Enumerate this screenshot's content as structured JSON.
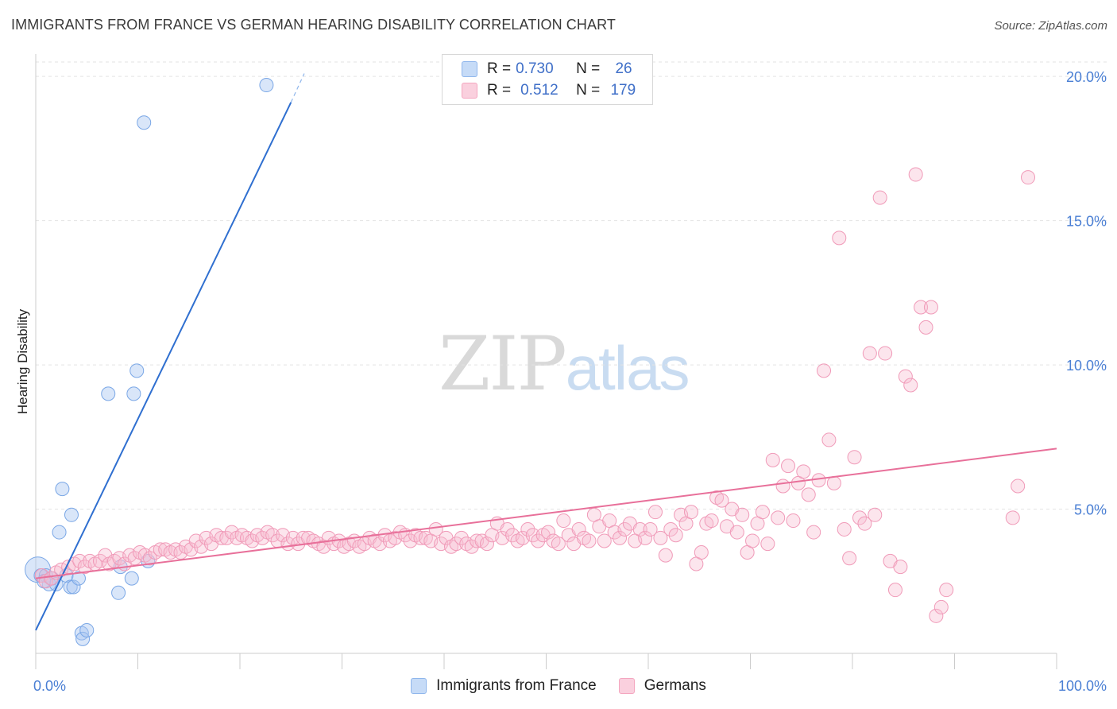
{
  "title": "IMMIGRANTS FROM FRANCE VS GERMAN HEARING DISABILITY CORRELATION CHART",
  "source": "Source: ZipAtlas.com",
  "watermark": {
    "zip": "ZIP",
    "atlas": "atlas"
  },
  "colors": {
    "blue": "#8fb6ec",
    "blue_line": "#2f6fd0",
    "pink": "#f4a6bf",
    "pink_line": "#e8709a",
    "tick": "#4a7fd4"
  },
  "legend": {
    "rows": [
      {
        "r_label": "R = ",
        "r_value": "0.730",
        "n_label": "N = ",
        "n_value": "26",
        "color": "#8fb6ec"
      },
      {
        "r_label": "R = ",
        "r_value": "0.512",
        "n_label": "N = ",
        "n_value": "179",
        "color": "#f4a6bf"
      }
    ]
  },
  "bottom_legend": [
    {
      "label": "Immigrants from France",
      "color": "#8fb6ec"
    },
    {
      "label": "Germans",
      "color": "#f4a6bf"
    }
  ],
  "chart_data": {
    "type": "scatter",
    "ylabel": "Hearing Disability",
    "xlabel": "",
    "xlim": [
      0,
      100
    ],
    "ylim": [
      0,
      20.5
    ],
    "x_tick_labels": [
      "0.0%",
      "100.0%"
    ],
    "y_ticks": [
      5,
      10,
      15,
      20
    ],
    "y_tick_labels": [
      "5.0%",
      "10.0%",
      "15.0%",
      "20.0%"
    ],
    "grid": true,
    "legend_position": "top-center",
    "series": [
      {
        "name": "Immigrants from France",
        "color": "#8fb6ec",
        "points": [
          [
            0.2,
            2.9
          ],
          [
            0.5,
            2.7
          ],
          [
            1.0,
            2.7
          ],
          [
            1.3,
            2.4
          ],
          [
            1.6,
            2.6
          ],
          [
            2.0,
            2.4
          ],
          [
            2.3,
            4.2
          ],
          [
            2.6,
            5.7
          ],
          [
            3.0,
            2.7
          ],
          [
            3.4,
            2.3
          ],
          [
            3.5,
            4.8
          ],
          [
            3.7,
            2.3
          ],
          [
            4.2,
            2.6
          ],
          [
            4.5,
            0.7
          ],
          [
            4.6,
            0.5
          ],
          [
            5.0,
            0.8
          ],
          [
            7.1,
            9.0
          ],
          [
            8.1,
            2.1
          ],
          [
            8.3,
            3.0
          ],
          [
            9.4,
            2.6
          ],
          [
            9.6,
            9.0
          ],
          [
            9.9,
            9.8
          ],
          [
            10.6,
            18.4
          ],
          [
            11.0,
            3.2
          ],
          [
            22.6,
            19.7
          ],
          [
            0.8,
            2.5
          ]
        ],
        "trend": {
          "x": [
            0,
            25
          ],
          "y": [
            0.8,
            19.1
          ],
          "dashed_extension": {
            "x": [
              25,
              26.3
            ],
            "y": [
              19.1,
              20.1
            ]
          }
        }
      },
      {
        "name": "Germans",
        "color": "#f4a6bf",
        "points": [
          [
            0.6,
            2.7
          ],
          [
            1.0,
            2.5
          ],
          [
            1.5,
            2.6
          ],
          [
            2.0,
            2.8
          ],
          [
            2.5,
            2.9
          ],
          [
            3.2,
            3.0
          ],
          [
            3.8,
            3.1
          ],
          [
            4.3,
            3.2
          ],
          [
            4.8,
            3.0
          ],
          [
            5.3,
            3.2
          ],
          [
            5.8,
            3.1
          ],
          [
            6.3,
            3.2
          ],
          [
            6.8,
            3.4
          ],
          [
            7.2,
            3.1
          ],
          [
            7.7,
            3.2
          ],
          [
            8.2,
            3.3
          ],
          [
            8.7,
            3.1
          ],
          [
            9.2,
            3.4
          ],
          [
            9.7,
            3.3
          ],
          [
            10.2,
            3.5
          ],
          [
            10.7,
            3.4
          ],
          [
            11.2,
            3.3
          ],
          [
            11.7,
            3.5
          ],
          [
            12.2,
            3.6
          ],
          [
            12.7,
            3.6
          ],
          [
            13.2,
            3.5
          ],
          [
            13.7,
            3.6
          ],
          [
            14.2,
            3.5
          ],
          [
            14.7,
            3.7
          ],
          [
            15.2,
            3.6
          ],
          [
            15.7,
            3.9
          ],
          [
            16.2,
            3.7
          ],
          [
            16.7,
            4.0
          ],
          [
            17.2,
            3.8
          ],
          [
            17.7,
            4.1
          ],
          [
            18.2,
            4.0
          ],
          [
            18.7,
            4.0
          ],
          [
            19.2,
            4.2
          ],
          [
            19.7,
            4.0
          ],
          [
            20.2,
            4.1
          ],
          [
            20.7,
            4.0
          ],
          [
            21.2,
            3.9
          ],
          [
            21.7,
            4.1
          ],
          [
            22.2,
            4.0
          ],
          [
            22.7,
            4.2
          ],
          [
            23.2,
            4.1
          ],
          [
            23.7,
            3.9
          ],
          [
            24.2,
            4.1
          ],
          [
            24.7,
            3.8
          ],
          [
            25.2,
            4.0
          ],
          [
            25.7,
            3.8
          ],
          [
            26.2,
            4.0
          ],
          [
            26.7,
            4.0
          ],
          [
            27.2,
            3.9
          ],
          [
            27.7,
            3.8
          ],
          [
            28.2,
            3.7
          ],
          [
            28.7,
            4.0
          ],
          [
            29.2,
            3.8
          ],
          [
            29.7,
            3.9
          ],
          [
            30.2,
            3.7
          ],
          [
            30.7,
            3.8
          ],
          [
            31.2,
            3.9
          ],
          [
            31.7,
            3.7
          ],
          [
            32.2,
            3.8
          ],
          [
            32.7,
            4.0
          ],
          [
            33.2,
            3.9
          ],
          [
            33.7,
            3.8
          ],
          [
            34.2,
            4.1
          ],
          [
            34.7,
            3.9
          ],
          [
            35.2,
            4.0
          ],
          [
            35.7,
            4.2
          ],
          [
            36.2,
            4.1
          ],
          [
            36.7,
            3.9
          ],
          [
            37.2,
            4.1
          ],
          [
            37.7,
            4.0
          ],
          [
            38.2,
            4.0
          ],
          [
            38.7,
            3.9
          ],
          [
            39.2,
            4.3
          ],
          [
            39.7,
            3.8
          ],
          [
            40.2,
            4.0
          ],
          [
            40.7,
            3.7
          ],
          [
            41.2,
            3.8
          ],
          [
            41.7,
            4.0
          ],
          [
            42.2,
            3.8
          ],
          [
            42.7,
            3.7
          ],
          [
            43.2,
            3.9
          ],
          [
            43.7,
            3.9
          ],
          [
            44.2,
            3.8
          ],
          [
            44.7,
            4.1
          ],
          [
            45.2,
            4.5
          ],
          [
            45.7,
            4.0
          ],
          [
            46.2,
            4.3
          ],
          [
            46.7,
            4.1
          ],
          [
            47.2,
            3.9
          ],
          [
            47.7,
            4.0
          ],
          [
            48.2,
            4.3
          ],
          [
            48.7,
            4.1
          ],
          [
            49.2,
            3.9
          ],
          [
            49.7,
            4.1
          ],
          [
            50.2,
            4.2
          ],
          [
            50.7,
            3.9
          ],
          [
            51.2,
            3.8
          ],
          [
            51.7,
            4.6
          ],
          [
            52.2,
            4.1
          ],
          [
            52.7,
            3.8
          ],
          [
            53.2,
            4.3
          ],
          [
            53.7,
            4.0
          ],
          [
            54.2,
            3.9
          ],
          [
            54.7,
            4.8
          ],
          [
            55.2,
            4.4
          ],
          [
            55.7,
            3.9
          ],
          [
            56.2,
            4.6
          ],
          [
            56.7,
            4.2
          ],
          [
            57.2,
            4.0
          ],
          [
            57.7,
            4.3
          ],
          [
            58.2,
            4.5
          ],
          [
            58.7,
            3.9
          ],
          [
            59.2,
            4.3
          ],
          [
            59.7,
            4.0
          ],
          [
            60.2,
            4.3
          ],
          [
            60.7,
            4.9
          ],
          [
            61.2,
            4.0
          ],
          [
            61.7,
            3.4
          ],
          [
            62.2,
            4.3
          ],
          [
            62.7,
            4.1
          ],
          [
            63.2,
            4.8
          ],
          [
            63.7,
            4.5
          ],
          [
            64.2,
            4.9
          ],
          [
            64.7,
            3.1
          ],
          [
            65.2,
            3.5
          ],
          [
            65.7,
            4.5
          ],
          [
            66.2,
            4.6
          ],
          [
            66.7,
            5.4
          ],
          [
            67.2,
            5.3
          ],
          [
            67.7,
            4.4
          ],
          [
            68.2,
            5.0
          ],
          [
            68.7,
            4.2
          ],
          [
            69.2,
            4.8
          ],
          [
            69.7,
            3.5
          ],
          [
            70.2,
            3.9
          ],
          [
            70.7,
            4.5
          ],
          [
            71.2,
            4.9
          ],
          [
            71.7,
            3.8
          ],
          [
            72.2,
            6.7
          ],
          [
            72.7,
            4.7
          ],
          [
            73.2,
            5.8
          ],
          [
            73.7,
            6.5
          ],
          [
            74.2,
            4.6
          ],
          [
            74.7,
            5.9
          ],
          [
            75.2,
            6.3
          ],
          [
            75.7,
            5.5
          ],
          [
            76.2,
            4.2
          ],
          [
            76.7,
            6.0
          ],
          [
            77.2,
            9.8
          ],
          [
            77.7,
            7.4
          ],
          [
            78.2,
            5.9
          ],
          [
            78.7,
            14.4
          ],
          [
            79.2,
            4.3
          ],
          [
            79.7,
            3.3
          ],
          [
            80.2,
            6.8
          ],
          [
            80.7,
            4.7
          ],
          [
            81.2,
            4.5
          ],
          [
            81.7,
            10.4
          ],
          [
            82.2,
            4.8
          ],
          [
            82.7,
            15.8
          ],
          [
            83.2,
            10.4
          ],
          [
            83.7,
            3.2
          ],
          [
            84.2,
            2.2
          ],
          [
            84.7,
            3.0
          ],
          [
            85.2,
            9.6
          ],
          [
            85.7,
            9.3
          ],
          [
            86.2,
            16.6
          ],
          [
            86.7,
            12.0
          ],
          [
            87.2,
            11.3
          ],
          [
            87.7,
            12.0
          ],
          [
            88.2,
            1.3
          ],
          [
            88.7,
            1.6
          ],
          [
            89.2,
            2.2
          ],
          [
            95.7,
            4.7
          ],
          [
            96.2,
            5.8
          ],
          [
            97.2,
            16.5
          ]
        ],
        "trend": {
          "x": [
            0,
            100
          ],
          "y": [
            2.6,
            7.1
          ]
        }
      }
    ]
  }
}
